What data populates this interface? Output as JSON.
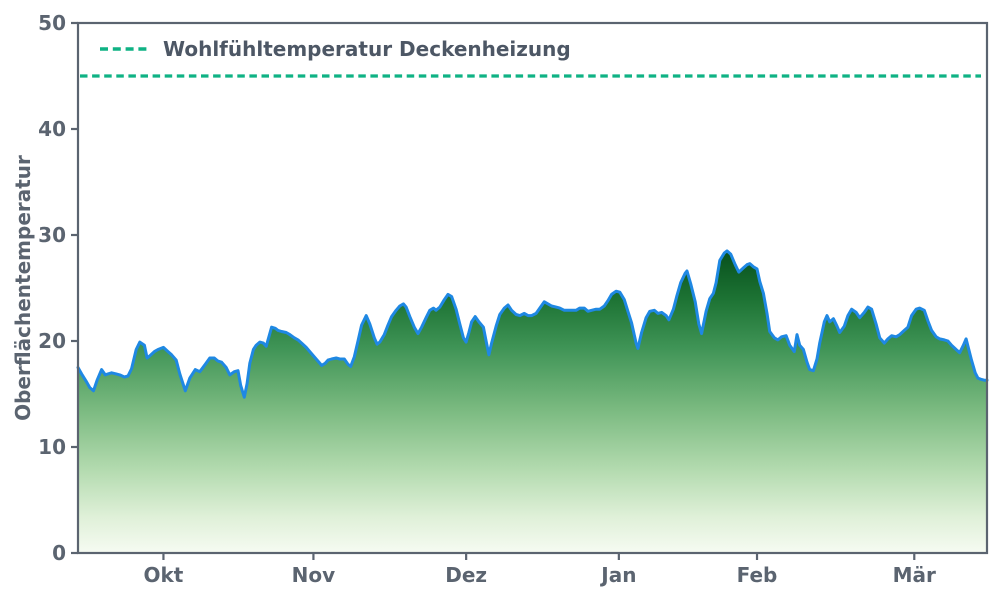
{
  "chart_data": {
    "type": "area",
    "title": "",
    "xlabel": "",
    "ylabel": "Oberflächentemperatur",
    "ylim": [
      0,
      50
    ],
    "yticks": [
      "0",
      "10",
      "20",
      "30",
      "40",
      "50"
    ],
    "ytick_values": [
      0,
      10,
      20,
      30,
      40,
      50
    ],
    "xticks": [
      {
        "label": "Okt",
        "pos": 0.094
      },
      {
        "label": "Nov",
        "pos": 0.259
      },
      {
        "label": "Dez",
        "pos": 0.427
      },
      {
        "label": "Jan",
        "pos": 0.595
      },
      {
        "label": "Feb",
        "pos": 0.747
      },
      {
        "label": "Mär",
        "pos": 0.92
      }
    ],
    "grid": false,
    "legend_position": "upper-left",
    "threshold": {
      "label": "Wohlfühltemperatur Deckenheizung",
      "value": 45,
      "color": "#0fb284",
      "line_style": "dashed"
    },
    "colors": {
      "axis": "#5b6470",
      "tick_label": "#5b6470",
      "legend_text": "#4d5765",
      "line": "#1f88e3",
      "background": "#ffffff"
    },
    "series": [
      {
        "name": "Oberflächentemperatur",
        "line_color": "#1f88e3",
        "fill_gradient_stops": [
          [
            0.0,
            "#07501c"
          ],
          [
            0.16,
            "#1d7334"
          ],
          [
            0.32,
            "#3f9456"
          ],
          [
            0.52,
            "#79b97f"
          ],
          [
            0.72,
            "#b2daae"
          ],
          [
            0.88,
            "#dff0d8"
          ],
          [
            1.0,
            "#f6fbf2"
          ]
        ],
        "points": [
          [
            0.0,
            17.5
          ],
          [
            0.004,
            16.9
          ],
          [
            0.009,
            16.2
          ],
          [
            0.013,
            15.6
          ],
          [
            0.017,
            15.3
          ],
          [
            0.021,
            16.3
          ],
          [
            0.026,
            17.3
          ],
          [
            0.03,
            16.8
          ],
          [
            0.033,
            16.9
          ],
          [
            0.037,
            17.0
          ],
          [
            0.042,
            16.9
          ],
          [
            0.046,
            16.8
          ],
          [
            0.051,
            16.6
          ],
          [
            0.055,
            16.7
          ],
          [
            0.059,
            17.4
          ],
          [
            0.064,
            19.2
          ],
          [
            0.068,
            19.9
          ],
          [
            0.073,
            19.6
          ],
          [
            0.076,
            18.4
          ],
          [
            0.079,
            18.6
          ],
          [
            0.084,
            19.0
          ],
          [
            0.088,
            19.2
          ],
          [
            0.094,
            19.4
          ],
          [
            0.099,
            19.0
          ],
          [
            0.103,
            18.7
          ],
          [
            0.108,
            18.2
          ],
          [
            0.112,
            16.9
          ],
          [
            0.118,
            15.3
          ],
          [
            0.123,
            16.5
          ],
          [
            0.129,
            17.3
          ],
          [
            0.134,
            17.1
          ],
          [
            0.14,
            17.8
          ],
          [
            0.145,
            18.4
          ],
          [
            0.15,
            18.4
          ],
          [
            0.154,
            18.1
          ],
          [
            0.158,
            18.0
          ],
          [
            0.163,
            17.5
          ],
          [
            0.167,
            16.8
          ],
          [
            0.172,
            17.1
          ],
          [
            0.176,
            17.2
          ],
          [
            0.179,
            15.8
          ],
          [
            0.183,
            14.7
          ],
          [
            0.186,
            16.0
          ],
          [
            0.189,
            17.9
          ],
          [
            0.193,
            19.2
          ],
          [
            0.196,
            19.6
          ],
          [
            0.2,
            19.9
          ],
          [
            0.204,
            19.8
          ],
          [
            0.207,
            19.5
          ],
          [
            0.21,
            20.4
          ],
          [
            0.213,
            21.3
          ],
          [
            0.217,
            21.2
          ],
          [
            0.22,
            21.0
          ],
          [
            0.224,
            20.9
          ],
          [
            0.229,
            20.8
          ],
          [
            0.233,
            20.6
          ],
          [
            0.238,
            20.3
          ],
          [
            0.242,
            20.1
          ],
          [
            0.246,
            19.8
          ],
          [
            0.251,
            19.4
          ],
          [
            0.255,
            19.0
          ],
          [
            0.26,
            18.5
          ],
          [
            0.264,
            18.1
          ],
          [
            0.268,
            17.7
          ],
          [
            0.272,
            17.9
          ],
          [
            0.275,
            18.2
          ],
          [
            0.279,
            18.3
          ],
          [
            0.284,
            18.4
          ],
          [
            0.288,
            18.3
          ],
          [
            0.293,
            18.3
          ],
          [
            0.297,
            17.8
          ],
          [
            0.3,
            17.6
          ],
          [
            0.304,
            18.5
          ],
          [
            0.308,
            20.0
          ],
          [
            0.312,
            21.5
          ],
          [
            0.317,
            22.4
          ],
          [
            0.321,
            21.6
          ],
          [
            0.326,
            20.3
          ],
          [
            0.329,
            19.7
          ],
          [
            0.332,
            19.9
          ],
          [
            0.337,
            20.6
          ],
          [
            0.341,
            21.5
          ],
          [
            0.345,
            22.3
          ],
          [
            0.35,
            22.9
          ],
          [
            0.354,
            23.3
          ],
          [
            0.358,
            23.5
          ],
          [
            0.361,
            23.2
          ],
          [
            0.365,
            22.3
          ],
          [
            0.37,
            21.3
          ],
          [
            0.374,
            20.7
          ],
          [
            0.378,
            21.3
          ],
          [
            0.383,
            22.2
          ],
          [
            0.387,
            22.9
          ],
          [
            0.391,
            23.1
          ],
          [
            0.394,
            22.9
          ],
          [
            0.398,
            23.2
          ],
          [
            0.403,
            23.9
          ],
          [
            0.407,
            24.4
          ],
          [
            0.411,
            24.2
          ],
          [
            0.416,
            23.0
          ],
          [
            0.42,
            21.6
          ],
          [
            0.424,
            20.3
          ],
          [
            0.427,
            19.9
          ],
          [
            0.43,
            20.8
          ],
          [
            0.433,
            21.8
          ],
          [
            0.437,
            22.3
          ],
          [
            0.441,
            21.8
          ],
          [
            0.446,
            21.3
          ],
          [
            0.449,
            20.0
          ],
          [
            0.452,
            18.7
          ],
          [
            0.455,
            19.8
          ],
          [
            0.46,
            21.4
          ],
          [
            0.464,
            22.5
          ],
          [
            0.469,
            23.1
          ],
          [
            0.473,
            23.4
          ],
          [
            0.477,
            22.9
          ],
          [
            0.482,
            22.5
          ],
          [
            0.486,
            22.4
          ],
          [
            0.491,
            22.6
          ],
          [
            0.495,
            22.4
          ],
          [
            0.499,
            22.4
          ],
          [
            0.504,
            22.6
          ],
          [
            0.508,
            23.1
          ],
          [
            0.513,
            23.7
          ],
          [
            0.517,
            23.5
          ],
          [
            0.521,
            23.3
          ],
          [
            0.526,
            23.2
          ],
          [
            0.53,
            23.1
          ],
          [
            0.535,
            22.9
          ],
          [
            0.539,
            22.9
          ],
          [
            0.543,
            22.9
          ],
          [
            0.548,
            22.9
          ],
          [
            0.552,
            23.1
          ],
          [
            0.557,
            23.1
          ],
          [
            0.561,
            22.8
          ],
          [
            0.565,
            22.9
          ],
          [
            0.57,
            23.0
          ],
          [
            0.574,
            23.0
          ],
          [
            0.579,
            23.3
          ],
          [
            0.583,
            23.8
          ],
          [
            0.587,
            24.4
          ],
          [
            0.592,
            24.7
          ],
          [
            0.596,
            24.6
          ],
          [
            0.601,
            23.9
          ],
          [
            0.605,
            22.8
          ],
          [
            0.609,
            21.7
          ],
          [
            0.614,
            19.8
          ],
          [
            0.616,
            19.3
          ],
          [
            0.62,
            20.8
          ],
          [
            0.625,
            22.2
          ],
          [
            0.629,
            22.8
          ],
          [
            0.634,
            22.9
          ],
          [
            0.638,
            22.6
          ],
          [
            0.642,
            22.7
          ],
          [
            0.647,
            22.4
          ],
          [
            0.65,
            22.0
          ],
          [
            0.655,
            23.0
          ],
          [
            0.659,
            24.3
          ],
          [
            0.663,
            25.5
          ],
          [
            0.668,
            26.4
          ],
          [
            0.67,
            26.6
          ],
          [
            0.674,
            25.4
          ],
          [
            0.679,
            23.7
          ],
          [
            0.683,
            21.6
          ],
          [
            0.686,
            20.7
          ],
          [
            0.691,
            22.8
          ],
          [
            0.695,
            24.0
          ],
          [
            0.699,
            24.5
          ],
          [
            0.702,
            25.5
          ],
          [
            0.706,
            27.6
          ],
          [
            0.711,
            28.3
          ],
          [
            0.714,
            28.5
          ],
          [
            0.718,
            28.2
          ],
          [
            0.723,
            27.2
          ],
          [
            0.727,
            26.5
          ],
          [
            0.732,
            26.9
          ],
          [
            0.736,
            27.2
          ],
          [
            0.739,
            27.3
          ],
          [
            0.743,
            27.0
          ],
          [
            0.747,
            26.8
          ],
          [
            0.75,
            25.6
          ],
          [
            0.754,
            24.5
          ],
          [
            0.758,
            22.6
          ],
          [
            0.761,
            20.9
          ],
          [
            0.766,
            20.3
          ],
          [
            0.77,
            20.1
          ],
          [
            0.774,
            20.4
          ],
          [
            0.779,
            20.5
          ],
          [
            0.783,
            19.6
          ],
          [
            0.788,
            19.0
          ],
          [
            0.791,
            20.6
          ],
          [
            0.794,
            19.6
          ],
          [
            0.798,
            19.2
          ],
          [
            0.802,
            18.0
          ],
          [
            0.805,
            17.3
          ],
          [
            0.809,
            17.2
          ],
          [
            0.813,
            18.3
          ],
          [
            0.816,
            19.8
          ],
          [
            0.821,
            21.8
          ],
          [
            0.824,
            22.4
          ],
          [
            0.827,
            21.8
          ],
          [
            0.831,
            22.1
          ],
          [
            0.835,
            21.4
          ],
          [
            0.838,
            20.8
          ],
          [
            0.843,
            21.4
          ],
          [
            0.847,
            22.4
          ],
          [
            0.851,
            23.0
          ],
          [
            0.856,
            22.7
          ],
          [
            0.86,
            22.2
          ],
          [
            0.865,
            22.7
          ],
          [
            0.869,
            23.2
          ],
          [
            0.873,
            23.0
          ],
          [
            0.878,
            21.6
          ],
          [
            0.882,
            20.3
          ],
          [
            0.887,
            19.8
          ],
          [
            0.891,
            20.2
          ],
          [
            0.895,
            20.5
          ],
          [
            0.9,
            20.4
          ],
          [
            0.904,
            20.6
          ],
          [
            0.909,
            21.0
          ],
          [
            0.913,
            21.3
          ],
          [
            0.917,
            22.4
          ],
          [
            0.922,
            23.0
          ],
          [
            0.926,
            23.1
          ],
          [
            0.931,
            22.9
          ],
          [
            0.935,
            21.9
          ],
          [
            0.939,
            21.0
          ],
          [
            0.944,
            20.4
          ],
          [
            0.948,
            20.2
          ],
          [
            0.953,
            20.1
          ],
          [
            0.957,
            20.0
          ],
          [
            0.961,
            19.6
          ],
          [
            0.966,
            19.2
          ],
          [
            0.97,
            18.9
          ],
          [
            0.974,
            19.6
          ],
          [
            0.977,
            20.2
          ],
          [
            0.98,
            19.2
          ],
          [
            0.983,
            18.2
          ],
          [
            0.987,
            17.0
          ],
          [
            0.99,
            16.5
          ],
          [
            0.993,
            16.4
          ],
          [
            0.997,
            16.3
          ],
          [
            1.0,
            16.3
          ]
        ]
      }
    ]
  }
}
